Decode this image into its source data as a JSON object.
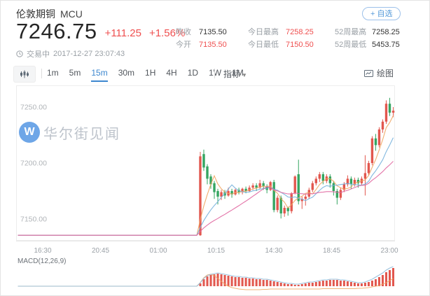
{
  "header": {
    "title": "伦敦期铜",
    "symbol": "MCU",
    "watchlist_button": "+ 自选",
    "price": "7246.75",
    "change": "+111.25",
    "change_pct": "+1.56%",
    "status_label": "交易中",
    "timestamp": "2017-12-27 23:07:43",
    "stats": [
      {
        "label": "昨收",
        "value": "7135.50",
        "color": "dark"
      },
      {
        "label": "今开",
        "value": "7135.50",
        "color": "red"
      },
      {
        "label": "今日最高",
        "value": "7258.25",
        "color": "red"
      },
      {
        "label": "今日最低",
        "value": "7150.50",
        "color": "red"
      },
      {
        "label": "52周最高",
        "value": "7258.25",
        "color": "dark"
      },
      {
        "label": "52周最低",
        "value": "5453.75",
        "color": "dark"
      }
    ]
  },
  "toolbar": {
    "intervals": [
      "1m",
      "5m",
      "15m",
      "30m",
      "1H",
      "4H",
      "1D",
      "1W",
      "1M"
    ],
    "active_interval": "15m",
    "indicator_label": "指标",
    "draw_label": "绘图"
  },
  "watermark": {
    "logo_letter": "W",
    "text": "华尔街见闻"
  },
  "chart_data": {
    "type": "candlestick",
    "interval": "15m",
    "y_ticks": [
      {
        "label": "7250.00",
        "value": 7250
      },
      {
        "label": "7200.00",
        "value": 7200
      },
      {
        "label": "7150.00",
        "value": 7150
      }
    ],
    "x_labels": [
      "16:30",
      "20:45",
      "01:00",
      "10:15",
      "14:30",
      "18:45",
      "23:00"
    ],
    "premarket_price": 7135.5,
    "premarket_points": 52,
    "candles": [
      [
        7135.5,
        7210,
        7135,
        7206
      ],
      [
        7208,
        7212,
        7193,
        7196
      ],
      [
        7197,
        7199,
        7181,
        7186
      ],
      [
        7188,
        7190,
        7177,
        7181
      ],
      [
        7182,
        7184,
        7168,
        7174
      ],
      [
        7175,
        7177,
        7163,
        7170
      ],
      [
        7170,
        7176,
        7167,
        7174
      ],
      [
        7174,
        7176,
        7168,
        7171
      ],
      [
        7171,
        7178,
        7170,
        7175
      ],
      [
        7175,
        7177,
        7169,
        7172
      ],
      [
        7172,
        7177,
        7171,
        7176
      ],
      [
        7176,
        7178,
        7172,
        7174
      ],
      [
        7174,
        7178,
        7172,
        7177
      ],
      [
        7177,
        7179,
        7173,
        7175
      ],
      [
        7175,
        7180,
        7174,
        7178
      ],
      [
        7178,
        7182,
        7176,
        7180
      ],
      [
        7180,
        7182,
        7175,
        7178
      ],
      [
        7178,
        7185,
        7177,
        7182
      ],
      [
        7182,
        7184,
        7176,
        7179
      ],
      [
        7179,
        7181,
        7173,
        7176
      ],
      [
        7176,
        7184,
        7175,
        7183
      ],
      [
        7183,
        7185,
        7156,
        7158
      ],
      [
        7158,
        7171,
        7156,
        7169
      ],
      [
        7169,
        7171,
        7150.5,
        7155
      ],
      [
        7155,
        7162,
        7152,
        7160
      ],
      [
        7160,
        7161,
        7153,
        7157
      ],
      [
        7157,
        7174,
        7155,
        7173
      ],
      [
        7173,
        7189,
        7172,
        7188
      ],
      [
        7190,
        7203,
        7163,
        7166
      ],
      [
        7166,
        7170,
        7159,
        7168
      ],
      [
        7168,
        7172,
        7162,
        7170
      ],
      [
        7170,
        7178,
        7168,
        7176
      ],
      [
        7176,
        7184,
        7174,
        7182
      ],
      [
        7182,
        7188,
        7180,
        7186
      ],
      [
        7186,
        7192,
        7183,
        7190
      ],
      [
        7190,
        7192,
        7181,
        7184
      ],
      [
        7184,
        7190,
        7182,
        7188
      ],
      [
        7188,
        7190,
        7178,
        7182
      ],
      [
        7182,
        7184,
        7171,
        7175
      ],
      [
        7175,
        7177,
        7163,
        7169
      ],
      [
        7169,
        7178,
        7167,
        7176
      ],
      [
        7176,
        7183,
        7174,
        7181
      ],
      [
        7181,
        7189,
        7179,
        7186
      ],
      [
        7186,
        7188,
        7177,
        7181
      ],
      [
        7181,
        7187,
        7179,
        7185
      ],
      [
        7185,
        7187,
        7178,
        7182
      ],
      [
        7182,
        7188,
        7180,
        7186
      ],
      [
        7186,
        7207,
        7171,
        7191
      ],
      [
        7191,
        7202,
        7189,
        7200
      ],
      [
        7200,
        7224,
        7198,
        7222
      ],
      [
        7222,
        7226,
        7211,
        7216
      ],
      [
        7216,
        7232,
        7214,
        7230
      ],
      [
        7230,
        7239,
        7227,
        7237
      ],
      [
        7237,
        7256,
        7235,
        7253
      ],
      [
        7253,
        7258.25,
        7242,
        7245
      ],
      [
        7245,
        7250,
        7241,
        7246.75
      ]
    ],
    "moving_averages": [
      {
        "name": "MA5",
        "window": 5
      },
      {
        "name": "MA10",
        "window": 10
      },
      {
        "name": "MA20",
        "window": 20
      }
    ],
    "macd": {
      "label": "MACD(12,26,9)",
      "hist": [
        4,
        10,
        14,
        16,
        17,
        18,
        17,
        16,
        15,
        14,
        13,
        13,
        12,
        12,
        11,
        11,
        10,
        10,
        9,
        9,
        8,
        7,
        6,
        5,
        4,
        3,
        3,
        2,
        2,
        3,
        4,
        5,
        5,
        6,
        7,
        8,
        8,
        9,
        9,
        9,
        8,
        8,
        7,
        6,
        5,
        4,
        4,
        5,
        6,
        8,
        10,
        13,
        16,
        20,
        23,
        26
      ],
      "dif": [
        5,
        11,
        15,
        17,
        18,
        19,
        18,
        17,
        16,
        15,
        14,
        14,
        13,
        13,
        12,
        12,
        11,
        11,
        10,
        10,
        9,
        8,
        7,
        6,
        5,
        4,
        4,
        3,
        3,
        4,
        5,
        6,
        6,
        7,
        8,
        9,
        9,
        10,
        10,
        10,
        9,
        9,
        8,
        7,
        6,
        5,
        5,
        6,
        8,
        10,
        13,
        16,
        19,
        23,
        26,
        28
      ],
      "dea": [
        5,
        12,
        16,
        17,
        15,
        11,
        7,
        3,
        0,
        -2,
        -3,
        -4,
        -4.5,
        -5,
        -5,
        -5,
        -5,
        -5,
        -4.5,
        -4.5,
        -4,
        -4,
        -4,
        -4,
        -4,
        -4,
        -4,
        -4,
        -4,
        -4,
        -4,
        -4,
        -4,
        -4,
        -4,
        -3.5,
        -3.5,
        -3.5,
        -3.5,
        -3.5,
        -3.5,
        -3.5,
        -3.5,
        -3.5,
        -3.5,
        -3,
        -3,
        -2.5,
        -2,
        -1,
        0,
        1,
        3,
        5,
        8,
        11
      ]
    },
    "colors": {
      "up": "#e2574e",
      "down": "#35a561",
      "ma5": "#f0a560",
      "ma10": "#74b0dc",
      "ma20": "#e0659f",
      "macd_bar": "#e2574e",
      "dif_line": "#8cb8d8",
      "dea_line": "#f0a560",
      "red_text": "#ef4f4f",
      "dark_text": "#333333",
      "accent": "#3d87cf"
    }
  }
}
